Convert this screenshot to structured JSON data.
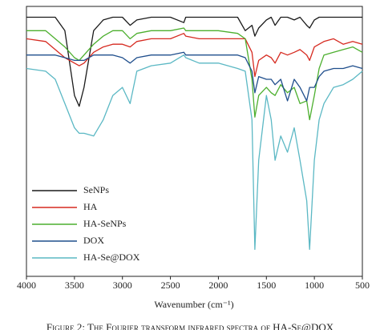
{
  "chart_data": {
    "type": "line",
    "xlabel": "Wavenumber (cm⁻¹)",
    "caption": "Figure 2: The Fourier transform infrared spectra of HA-Se@DOX",
    "xlim": [
      4000,
      500
    ],
    "ylim": [
      0,
      100
    ],
    "xticks": [
      4000,
      3500,
      3000,
      2500,
      2000,
      1500,
      1000,
      500
    ],
    "x": [
      4000,
      3800,
      3700,
      3600,
      3500,
      3450,
      3400,
      3300,
      3200,
      3100,
      3000,
      2920,
      2850,
      2700,
      2500,
      2360,
      2340,
      2200,
      2000,
      1800,
      1720,
      1650,
      1620,
      1580,
      1500,
      1450,
      1410,
      1350,
      1280,
      1210,
      1150,
      1080,
      1050,
      1000,
      950,
      900,
      800,
      700,
      600,
      500
    ],
    "series": [
      {
        "name": "SeNPs",
        "color": "#1a1a1a",
        "values": [
          96,
          96,
          96,
          91,
          67,
          63,
          70,
          91,
          95,
          96,
          96,
          93,
          95,
          96,
          96,
          94,
          96,
          96,
          96,
          96,
          91,
          93,
          89,
          92,
          95,
          96,
          93,
          96,
          96,
          95,
          96,
          93,
          92,
          95,
          96,
          96,
          96,
          96,
          96,
          96
        ]
      },
      {
        "name": "HA",
        "color": "#d62a20",
        "values": [
          88,
          87,
          84,
          81,
          79,
          78,
          79,
          83,
          85,
          86,
          86,
          85,
          87,
          88,
          88,
          90,
          89,
          88,
          88,
          88,
          88,
          83,
          74,
          80,
          82,
          81,
          79,
          83,
          82,
          83,
          84,
          82,
          80,
          85,
          86,
          87,
          88,
          86,
          87,
          86
        ]
      },
      {
        "name": "HA-SeNPs",
        "color": "#4caf2e",
        "values": [
          91,
          91,
          88,
          85,
          81,
          80,
          82,
          86,
          89,
          91,
          91,
          88,
          90,
          91,
          91,
          92,
          91,
          91,
          91,
          90,
          88,
          73,
          59,
          67,
          70,
          68,
          67,
          71,
          68,
          70,
          64,
          65,
          58,
          67,
          77,
          82,
          83,
          84,
          85,
          83
        ]
      },
      {
        "name": "DOX",
        "color": "#1f4e8c",
        "values": [
          82,
          82,
          82,
          81,
          80,
          80,
          80,
          82,
          82,
          82,
          81,
          79,
          81,
          82,
          82,
          83,
          82,
          82,
          82,
          82,
          81,
          76,
          68,
          74,
          73,
          73,
          71,
          73,
          65,
          73,
          70,
          65,
          70,
          70,
          74,
          76,
          77,
          77,
          78,
          77
        ]
      },
      {
        "name": "HA-Se@DOX",
        "color": "#5bb8c4",
        "values": [
          77,
          76,
          73,
          64,
          55,
          53,
          53,
          52,
          58,
          67,
          70,
          64,
          76,
          78,
          79,
          82,
          81,
          79,
          79,
          77,
          76,
          58,
          10,
          43,
          67,
          58,
          43,
          52,
          46,
          55,
          43,
          28,
          10,
          43,
          58,
          64,
          70,
          71,
          73,
          76
        ]
      }
    ]
  }
}
